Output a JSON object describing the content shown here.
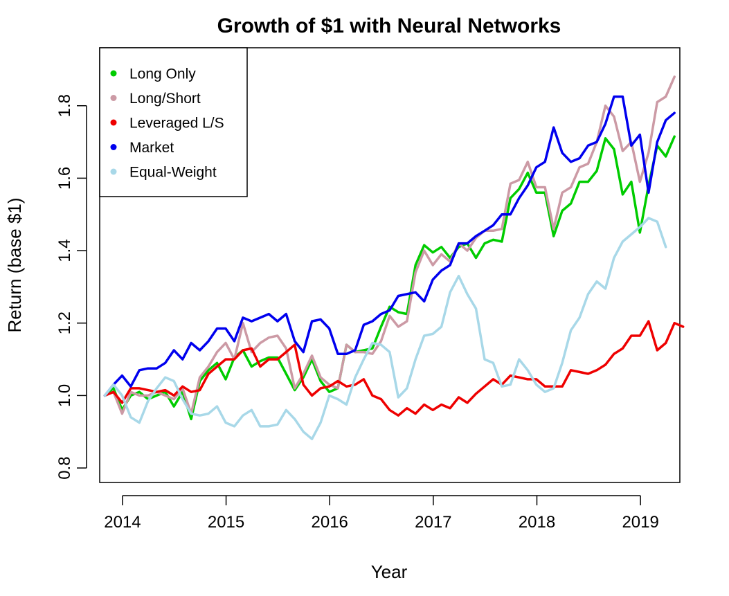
{
  "chart_data": {
    "type": "line",
    "title": "Growth of $1 with Neural Networks",
    "xlabel": "Year",
    "ylabel": "Return (base $1)",
    "xlim": [
      2013.78,
      2019.38
    ],
    "ylim": [
      0.76,
      1.96
    ],
    "x_ticks": [
      2014,
      2015,
      2016,
      2017,
      2018,
      2019
    ],
    "y_ticks": [
      0.8,
      1.0,
      1.2,
      1.4,
      1.6,
      1.8
    ],
    "legend_position": "top-left",
    "grid": false,
    "x_start": 2013.83,
    "x_step": 0.0833,
    "series": [
      {
        "name": "Long Only",
        "color": "#00cc00",
        "values": [
          1.0,
          1.02,
          0.96,
          1.0,
          1.01,
          0.99,
          1.0,
          1.01,
          0.97,
          1.01,
          0.935,
          1.04,
          1.07,
          1.09,
          1.045,
          1.105,
          1.125,
          1.08,
          1.095,
          1.105,
          1.105,
          1.06,
          1.015,
          1.05,
          1.1,
          1.04,
          1.01,
          1.02,
          1.14,
          1.12,
          1.125,
          1.13,
          1.19,
          1.245,
          1.23,
          1.225,
          1.36,
          1.415,
          1.395,
          1.41,
          1.38,
          1.41,
          1.42,
          1.38,
          1.42,
          1.43,
          1.425,
          1.545,
          1.57,
          1.615,
          1.56,
          1.56,
          1.44,
          1.51,
          1.53,
          1.59,
          1.59,
          1.62,
          1.71,
          1.68,
          1.555,
          1.59,
          1.45,
          1.58,
          1.69,
          1.66,
          1.715
        ]
      },
      {
        "name": "Long/Short",
        "color": "#cc9aa5",
        "values": [
          1.0,
          1.01,
          0.95,
          1.01,
          1.0,
          1.0,
          1.01,
          1.0,
          0.99,
          1.02,
          0.95,
          1.05,
          1.08,
          1.12,
          1.145,
          1.1,
          1.2,
          1.12,
          1.145,
          1.16,
          1.165,
          1.13,
          1.02,
          1.06,
          1.11,
          1.05,
          1.03,
          1.02,
          1.14,
          1.12,
          1.12,
          1.115,
          1.15,
          1.22,
          1.19,
          1.205,
          1.34,
          1.4,
          1.36,
          1.39,
          1.37,
          1.42,
          1.4,
          1.435,
          1.455,
          1.455,
          1.46,
          1.585,
          1.595,
          1.645,
          1.575,
          1.575,
          1.46,
          1.56,
          1.575,
          1.63,
          1.64,
          1.7,
          1.8,
          1.77,
          1.675,
          1.7,
          1.59,
          1.67,
          1.81,
          1.825,
          1.88
        ]
      },
      {
        "name": "Leveraged L/S",
        "color": "#ee0000",
        "values": [
          1.0,
          1.01,
          0.98,
          1.02,
          1.02,
          1.015,
          1.01,
          1.015,
          1.0,
          1.025,
          1.01,
          1.015,
          1.06,
          1.08,
          1.1,
          1.1,
          1.125,
          1.13,
          1.08,
          1.1,
          1.1,
          1.12,
          1.14,
          1.03,
          1.0,
          1.02,
          1.025,
          1.04,
          1.025,
          1.03,
          1.045,
          1.0,
          0.99,
          0.96,
          0.945,
          0.965,
          0.95,
          0.975,
          0.96,
          0.975,
          0.965,
          0.995,
          0.98,
          1.005,
          1.025,
          1.045,
          1.03,
          1.055,
          1.05,
          1.045,
          1.045,
          1.025,
          1.025,
          1.025,
          1.07,
          1.065,
          1.06,
          1.07,
          1.085,
          1.115,
          1.13,
          1.165,
          1.165,
          1.205,
          1.125,
          1.145,
          1.2,
          1.19
        ]
      },
      {
        "name": "Market",
        "color": "#0000ee",
        "values": [
          1.0,
          1.03,
          1.055,
          1.025,
          1.07,
          1.075,
          1.075,
          1.09,
          1.125,
          1.1,
          1.145,
          1.125,
          1.15,
          1.185,
          1.185,
          1.15,
          1.215,
          1.205,
          1.215,
          1.225,
          1.205,
          1.225,
          1.15,
          1.12,
          1.205,
          1.21,
          1.185,
          1.115,
          1.115,
          1.125,
          1.195,
          1.205,
          1.225,
          1.235,
          1.275,
          1.28,
          1.285,
          1.26,
          1.32,
          1.345,
          1.36,
          1.42,
          1.42,
          1.44,
          1.455,
          1.47,
          1.5,
          1.5,
          1.545,
          1.58,
          1.63,
          1.645,
          1.74,
          1.67,
          1.645,
          1.655,
          1.69,
          1.7,
          1.75,
          1.825,
          1.825,
          1.69,
          1.72,
          1.56,
          1.7,
          1.76,
          1.78
        ]
      },
      {
        "name": "Equal-Weight",
        "color": "#a8d8e8",
        "values": [
          1.0,
          1.03,
          1.0,
          0.94,
          0.925,
          0.985,
          1.02,
          1.05,
          1.04,
          0.99,
          0.95,
          0.945,
          0.95,
          0.97,
          0.925,
          0.915,
          0.945,
          0.96,
          0.915,
          0.915,
          0.92,
          0.96,
          0.935,
          0.9,
          0.88,
          0.925,
          1.0,
          0.99,
          0.975,
          1.05,
          1.1,
          1.145,
          1.14,
          1.12,
          0.995,
          1.02,
          1.1,
          1.165,
          1.17,
          1.19,
          1.285,
          1.33,
          1.28,
          1.24,
          1.1,
          1.09,
          1.025,
          1.03,
          1.1,
          1.07,
          1.03,
          1.01,
          1.02,
          1.09,
          1.18,
          1.215,
          1.28,
          1.315,
          1.295,
          1.38,
          1.425,
          1.445,
          1.465,
          1.49,
          1.48,
          1.41
        ]
      }
    ]
  }
}
